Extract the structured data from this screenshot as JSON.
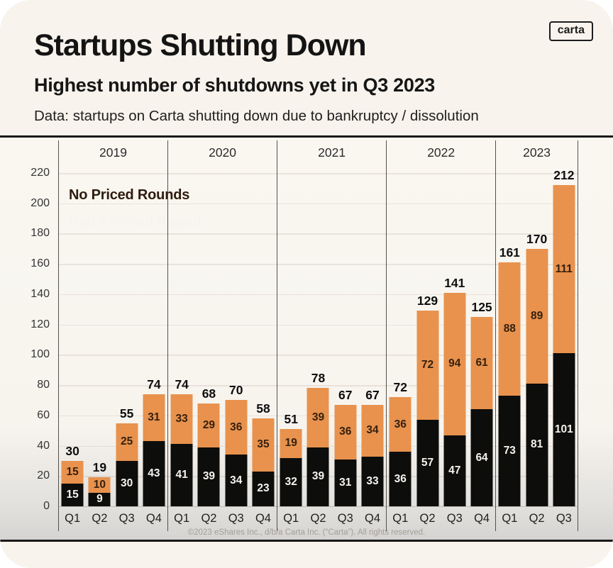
{
  "header": {
    "title": "Startups Shutting Down",
    "subtitle": "Highest number of shutdowns yet in Q3 2023",
    "note": "Data: startups on Carta shutting down due to bankruptcy / dissolution",
    "logo": "carta"
  },
  "legend": [
    {
      "label": "No Priced Rounds",
      "color": "#E8924D",
      "text_color": "#2E1B0C"
    },
    {
      "label": "Had a Priced Round",
      "color": "#0D0D0C",
      "text_color": "#F7F4F0"
    }
  ],
  "colors": {
    "orange": "#E8924D",
    "black": "#0D0D0C",
    "card_background": "#F8F3EC",
    "rule": "#191919"
  },
  "chart_data": {
    "type": "bar",
    "stacked": true,
    "title": "Startups Shutting Down",
    "xlabel": "",
    "ylabel": "",
    "ylim": [
      0,
      230
    ],
    "yticks": [
      0,
      20,
      40,
      60,
      80,
      100,
      120,
      140,
      160,
      180,
      200,
      220
    ],
    "grid": true,
    "legend_position": "top-left",
    "series_names": [
      "Had a Priced Round",
      "No Priced Rounds"
    ],
    "years": [
      {
        "year": "2019",
        "quarters": [
          "Q1",
          "Q2",
          "Q3",
          "Q4"
        ],
        "had_priced_round": [
          15,
          9,
          30,
          43
        ],
        "no_priced_rounds": [
          15,
          10,
          25,
          31
        ],
        "totals": [
          30,
          19,
          55,
          74
        ]
      },
      {
        "year": "2020",
        "quarters": [
          "Q1",
          "Q2",
          "Q3",
          "Q4"
        ],
        "had_priced_round": [
          41,
          39,
          34,
          23
        ],
        "no_priced_rounds": [
          33,
          29,
          36,
          35
        ],
        "totals": [
          74,
          68,
          70,
          58
        ]
      },
      {
        "year": "2021",
        "quarters": [
          "Q1",
          "Q2",
          "Q3",
          "Q4"
        ],
        "had_priced_round": [
          32,
          39,
          31,
          33
        ],
        "no_priced_rounds": [
          19,
          39,
          36,
          34
        ],
        "totals": [
          51,
          78,
          67,
          67
        ]
      },
      {
        "year": "2022",
        "quarters": [
          "Q1",
          "Q2",
          "Q3",
          "Q4"
        ],
        "had_priced_round": [
          36,
          57,
          47,
          64
        ],
        "no_priced_rounds": [
          36,
          72,
          94,
          61
        ],
        "totals": [
          72,
          129,
          141,
          125
        ]
      },
      {
        "year": "2023",
        "quarters": [
          "Q1",
          "Q2",
          "Q3"
        ],
        "had_priced_round": [
          73,
          81,
          101
        ],
        "no_priced_rounds": [
          88,
          89,
          111
        ],
        "totals": [
          161,
          170,
          212
        ]
      }
    ]
  },
  "footer": "©2023 eShares Inc., d/b/a Carta Inc. (“Carta”). All rights reserved."
}
